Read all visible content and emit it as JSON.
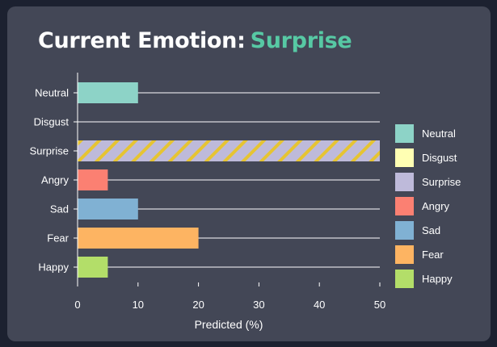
{
  "header": {
    "prefix": "Current Emotion:",
    "emotion": "Surprise"
  },
  "chart_data": {
    "type": "bar",
    "orientation": "horizontal",
    "categories": [
      "Neutral",
      "Disgust",
      "Surprise",
      "Angry",
      "Sad",
      "Fear",
      "Happy"
    ],
    "values": [
      10,
      0,
      50,
      5,
      10,
      20,
      5
    ],
    "colors": [
      "#8dd3c7",
      "#ffffb3",
      "#bebada",
      "#fb8072",
      "#80b1d3",
      "#fdb462",
      "#b3de69"
    ],
    "highlight": "Surprise",
    "highlight_hatch_color": "#e6c432",
    "xlabel": "Predicted (%)",
    "ylabel": "",
    "xlim": [
      0,
      50
    ],
    "xticks": [
      0,
      10,
      20,
      30,
      40,
      50
    ],
    "grid": "horizontal lines at each category",
    "legend": {
      "placement": "right",
      "entries": [
        "Neutral",
        "Disgust",
        "Surprise",
        "Angry",
        "Sad",
        "Fear",
        "Happy"
      ]
    }
  }
}
